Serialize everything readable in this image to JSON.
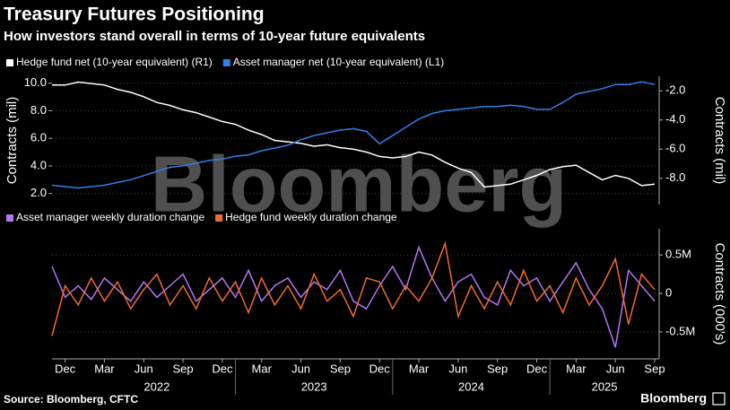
{
  "chart_data": [
    {
      "type": "line",
      "title": "Treasury Futures Positioning",
      "subtitle": "How investors stand overall in terms of 10-year future equivalents",
      "x": [
        "2021-11",
        "2021-12",
        "2022-01",
        "2022-02",
        "2022-03",
        "2022-04",
        "2022-05",
        "2022-06",
        "2022-07",
        "2022-08",
        "2022-09",
        "2022-10",
        "2022-11",
        "2022-12",
        "2023-01",
        "2023-02",
        "2023-03",
        "2023-04",
        "2023-05",
        "2023-06",
        "2023-07",
        "2023-08",
        "2023-09",
        "2023-10",
        "2023-11",
        "2023-12",
        "2024-01",
        "2024-02",
        "2024-03",
        "2024-04",
        "2024-05",
        "2024-06",
        "2024-07",
        "2024-08",
        "2024-09",
        "2024-10",
        "2024-11",
        "2024-12",
        "2025-01",
        "2025-02",
        "2025-03",
        "2025-04",
        "2025-05",
        "2025-06",
        "2025-07",
        "2025-08",
        "2025-09"
      ],
      "xlim": [
        "2021-11",
        "2025-09"
      ],
      "series": [
        {
          "name": "Hedge fund net (10-year equivalent) (R1)",
          "color": "#ffffff",
          "axis": "y2",
          "values": [
            -1.6,
            -1.6,
            -1.4,
            -1.5,
            -1.6,
            -1.9,
            -2.1,
            -2.4,
            -2.8,
            -3.0,
            -3.3,
            -3.5,
            -3.8,
            -4.1,
            -4.3,
            -4.7,
            -5.0,
            -5.4,
            -5.5,
            -5.6,
            -5.8,
            -5.7,
            -5.9,
            -6.0,
            -6.2,
            -6.5,
            -6.6,
            -6.5,
            -6.2,
            -6.4,
            -6.9,
            -7.3,
            -7.6,
            -8.6,
            -8.5,
            -8.4,
            -8.1,
            -7.8,
            -7.4,
            -7.2,
            -7.1,
            -7.6,
            -8.1,
            -7.8,
            -8.0,
            -8.5,
            -8.4
          ]
        },
        {
          "name": "Asset manager net (10-year equivalent) (L1)",
          "color": "#2f80e8",
          "values": [
            2.6,
            2.5,
            2.4,
            2.5,
            2.6,
            2.8,
            3.0,
            3.3,
            3.6,
            3.9,
            4.0,
            4.2,
            4.4,
            4.5,
            4.7,
            4.8,
            5.1,
            5.3,
            5.5,
            5.9,
            6.2,
            6.4,
            6.6,
            6.7,
            6.5,
            5.6,
            6.2,
            6.8,
            7.4,
            7.8,
            8.0,
            8.1,
            8.2,
            8.3,
            8.3,
            8.4,
            8.3,
            8.1,
            8.1,
            8.6,
            9.2,
            9.4,
            9.6,
            9.9,
            9.9,
            10.1,
            9.9
          ]
        }
      ],
      "ylim": [
        1.2,
        10.5
      ],
      "yticks": [
        {
          "value": 2,
          "label": "2.0"
        },
        {
          "value": 4,
          "label": "4.0"
        },
        {
          "value": 6,
          "label": "6.0"
        },
        {
          "value": 8,
          "label": "8.0"
        },
        {
          "value": 10,
          "label": "10.0"
        }
      ],
      "y2lim": [
        -9.8,
        -1.0
      ],
      "y2ticks": [
        {
          "value": -8,
          "label": "-8.0"
        },
        {
          "value": -6,
          "label": "-6.0"
        },
        {
          "value": -4,
          "label": "-4.0"
        },
        {
          "value": -2,
          "label": "-2.0"
        }
      ],
      "ylabel": "Contracts (mil)",
      "y2label": "Contracts (mil)",
      "grid": true
    },
    {
      "type": "line",
      "x": [
        "2021-11",
        "2021-12",
        "2022-01",
        "2022-02",
        "2022-03",
        "2022-04",
        "2022-05",
        "2022-06",
        "2022-07",
        "2022-08",
        "2022-09",
        "2022-10",
        "2022-11",
        "2022-12",
        "2023-01",
        "2023-02",
        "2023-03",
        "2023-04",
        "2023-05",
        "2023-06",
        "2023-07",
        "2023-08",
        "2023-09",
        "2023-10",
        "2023-11",
        "2023-12",
        "2024-01",
        "2024-02",
        "2024-03",
        "2024-04",
        "2024-05",
        "2024-06",
        "2024-07",
        "2024-08",
        "2024-09",
        "2024-10",
        "2024-11",
        "2024-12",
        "2025-01",
        "2025-02",
        "2025-03",
        "2025-04",
        "2025-05",
        "2025-06",
        "2025-07",
        "2025-08",
        "2025-09"
      ],
      "xlim": [
        "2021-11",
        "2025-09"
      ],
      "series": [
        {
          "name": "Asset manager weekly duration change",
          "color": "#b474f5",
          "axis": "y2",
          "values": [
            0.35,
            -0.05,
            0.1,
            -0.08,
            0.2,
            0.05,
            -0.1,
            0.15,
            -0.05,
            0.1,
            0.25,
            -0.1,
            0.05,
            0.2,
            -0.05,
            0.3,
            -0.1,
            0.1,
            0.2,
            -0.05,
            0.15,
            0.05,
            0.3,
            -0.1,
            -0.2,
            0.1,
            0.35,
            0.05,
            0.6,
            0.2,
            -0.1,
            0.15,
            0.25,
            -0.05,
            -0.15,
            0.3,
            0.1,
            0.2,
            -0.1,
            0.15,
            0.4,
            0.05,
            -0.2,
            -0.7,
            0.3,
            0.1,
            -0.1
          ]
        },
        {
          "name": "Hedge fund weekly duration change",
          "color": "#f26b2a",
          "axis": "y2",
          "values": [
            -0.55,
            0.1,
            -0.15,
            0.2,
            -0.1,
            0.15,
            -0.2,
            0.05,
            0.25,
            -0.15,
            0.1,
            -0.2,
            0.2,
            -0.1,
            0.15,
            -0.25,
            0.2,
            -0.15,
            0.1,
            -0.2,
            0.25,
            -0.1,
            0.05,
            -0.3,
            0.2,
            0.15,
            -0.2,
            0.1,
            -0.1,
            0.2,
            0.65,
            -0.3,
            0.1,
            -0.2,
            0.15,
            -0.15,
            0.3,
            -0.1,
            0.1,
            -0.25,
            0.2,
            -0.15,
            0.1,
            0.45,
            -0.4,
            0.25,
            0.05
          ]
        }
      ],
      "y2lim": [
        -0.85,
        0.84
      ],
      "y2ticks": [
        {
          "value": -0.5,
          "label": "-0.5M"
        },
        0,
        {
          "value": 0.5,
          "label": "0.5M"
        }
      ],
      "y2label": "Contracts (000's)",
      "grid": true,
      "xticks": [
        {
          "value": "2021-12",
          "label": "Dec"
        },
        {
          "value": "2022-03",
          "label": "Mar"
        },
        {
          "value": "2022-06",
          "label": "Jun"
        },
        {
          "value": "2022-09",
          "label": "Sep"
        },
        {
          "value": "2022-12",
          "label": "Dec"
        },
        {
          "value": "2023-03",
          "label": "Mar"
        },
        {
          "value": "2023-06",
          "label": "Jun"
        },
        {
          "value": "2023-09",
          "label": "Sep"
        },
        {
          "value": "2023-12",
          "label": "Dec"
        },
        {
          "value": "2024-03",
          "label": "Mar"
        },
        {
          "value": "2024-06",
          "label": "Jun"
        },
        {
          "value": "2024-09",
          "label": "Sep"
        },
        {
          "value": "2024-12",
          "label": "Dec"
        },
        {
          "value": "2025-03",
          "label": "Mar"
        },
        {
          "value": "2025-06",
          "label": "Jun"
        },
        {
          "value": "2025-09",
          "label": "Sep"
        }
      ],
      "xgroups": [
        "2022",
        "2023",
        "2024",
        "2025"
      ]
    }
  ],
  "watermark": "Bloomberg",
  "source": "Source: Bloomberg, CFTC",
  "brand": "Bloomberg"
}
